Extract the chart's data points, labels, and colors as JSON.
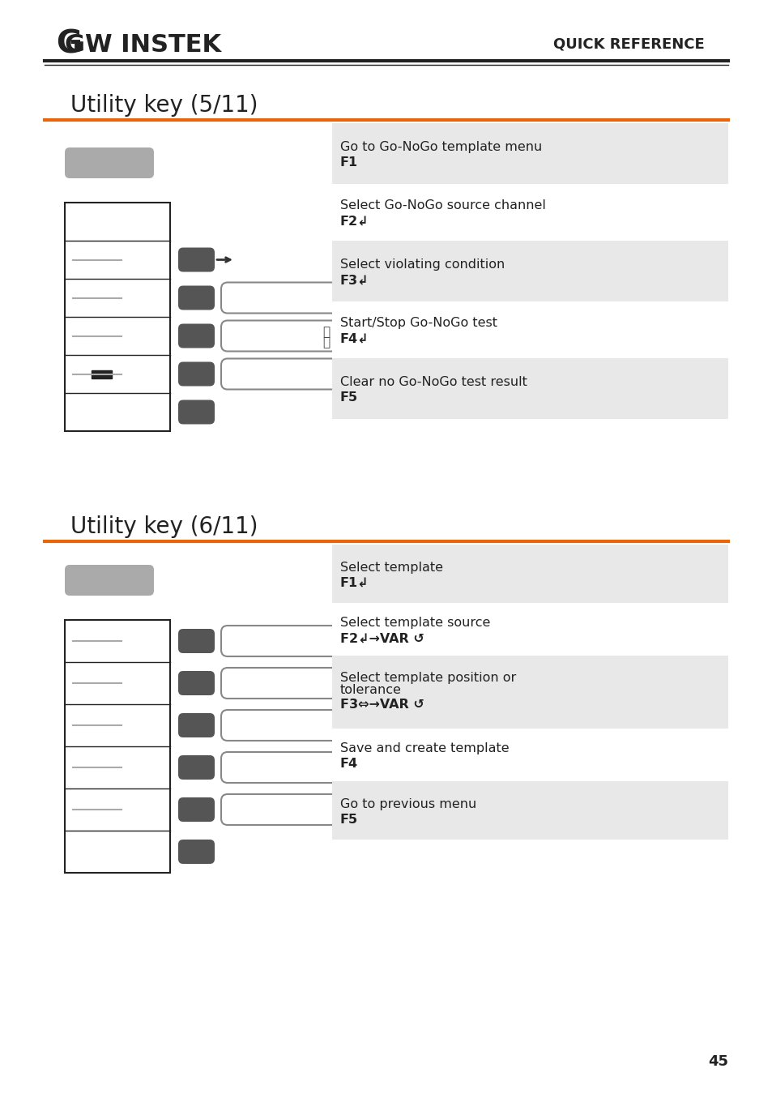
{
  "title1": "Utility key (5/11)",
  "title2": "Utility key (6/11)",
  "header_text": "QUICK REFERENCE",
  "orange_color": "#E8650A",
  "dark_gray": "#555555",
  "light_gray": "#D8D8D8",
  "bg_color": "#FFFFFF",
  "section1_rows": [
    {
      "label": "Go to Go-NoGo template menu\nF1",
      "bg": "#E8E8E8"
    },
    {
      "label": "Select Go-NoGo source channel\nF2↲",
      "bg": "#FFFFFF"
    },
    {
      "label": "Select violating condition\nF3↲",
      "bg": "#E8E8E8"
    },
    {
      "label": "Start/Stop Go-NoGo test\nF4↲",
      "bg": "#FFFFFF"
    },
    {
      "label": "Clear no Go-NoGo test result\nF5",
      "bg": "#E8E8E8"
    }
  ],
  "section2_rows": [
    {
      "label": "Select template\nF1↲",
      "bg": "#E8E8E8"
    },
    {
      "label": "Select template source\nF2↲→VAR ↺",
      "bg": "#FFFFFF"
    },
    {
      "label": "Select template position or\ntolerance\nF3⇔→VAR ↺",
      "bg": "#E8E8E8"
    },
    {
      "label": "Save and create template\nF4",
      "bg": "#FFFFFF"
    },
    {
      "label": "Go to previous menu\nF5",
      "bg": "#E8E8E8"
    }
  ],
  "page_number": "45"
}
